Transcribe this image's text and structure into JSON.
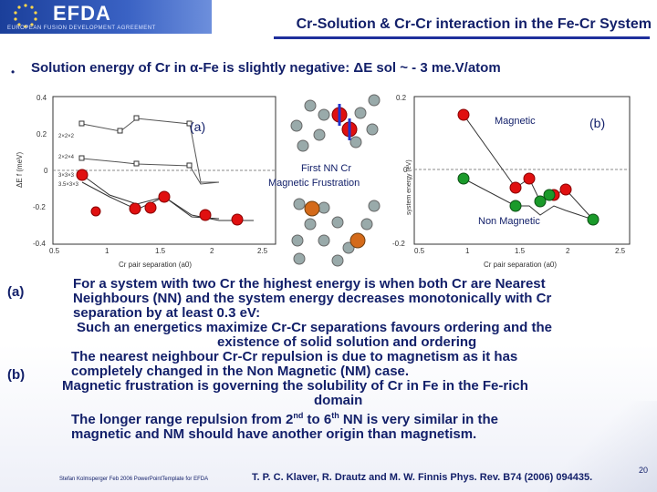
{
  "header": {
    "logo": "EFDA",
    "logo_sub": "EUROPEAN FUSION DEVELOPMENT AGREEMENT",
    "title": "Cr-Solution & Cr-Cr interaction in the Fe-Cr System"
  },
  "bullet": "Solution energy of Cr in α-Fe is slightly negative: ΔE sol ~ - 3 me.V/atom",
  "figure": {
    "label_a": "(a)",
    "label_b": "(b)",
    "magnetic": "Magnetic",
    "frustration_1": "First NN Cr",
    "frustration_2": "Magnetic Frustration",
    "non_magnetic": "Non Magnetic",
    "left_ylabel": "ΔE f (meV)",
    "left_xlabel": "Cr pair separation (a0)",
    "left_xticks": [
      "0.5",
      "1",
      "1.5",
      "2",
      "2.5"
    ],
    "left_yticks": [
      "0.4",
      "0.2",
      "0",
      "-0.2",
      "-0.4"
    ],
    "supercell_labels": [
      "2×2×2",
      "2×2×4",
      "3×3×3",
      "3.5×3×3"
    ],
    "right_ylabel": "system energy (eV)",
    "right_xlabel": "Cr pair separation (a0)",
    "right_xticks": [
      "0.5",
      "1",
      "1.5",
      "2",
      "2.5"
    ],
    "right_yticks": [
      "0.2",
      "0",
      "-0.2"
    ]
  },
  "labels": {
    "a": "(a)",
    "b": "(b)"
  },
  "body": {
    "l1": "For a system with two Cr the highest energy is when both Cr are Nearest",
    "l2": "Neighbours (NN) and the system energy decreases monotonically with Cr",
    "l3": "separation by at least 0.3 eV:",
    "l4": "Such an energetics maximize Cr-Cr separations favours ordering and the",
    "l5": "existence of solid solution and ordering",
    "l6": "The nearest neighbour Cr-Cr repulsion is due to magnetism as it has",
    "l7": "completely changed in the Non Magnetic (NM) case.",
    "l8": "Magnetic frustration is governing the solubility of Cr in Fe in the Fe-rich",
    "l9": "domain",
    "l10a": "The longer range repulsion from 2",
    "l10b": "nd",
    "l10c": " to 6",
    "l10d": "th",
    "l10e": " NN is very similar in the",
    "l11": "magnetic and NM should have another origin than magnetism."
  },
  "footer": {
    "left": "Stefan Kolmsperger Feb 2006 PowerPointTemplate for EFDA",
    "ref": "T. P. C. Klaver, R. Drautz and M. W. Finnis Phys. Rev. B74 (2006) 094435.",
    "page": "20"
  },
  "colors": {
    "title": "#13206a",
    "red": "#e01010",
    "green": "#1a9a2a",
    "blue": "#2233cc"
  }
}
